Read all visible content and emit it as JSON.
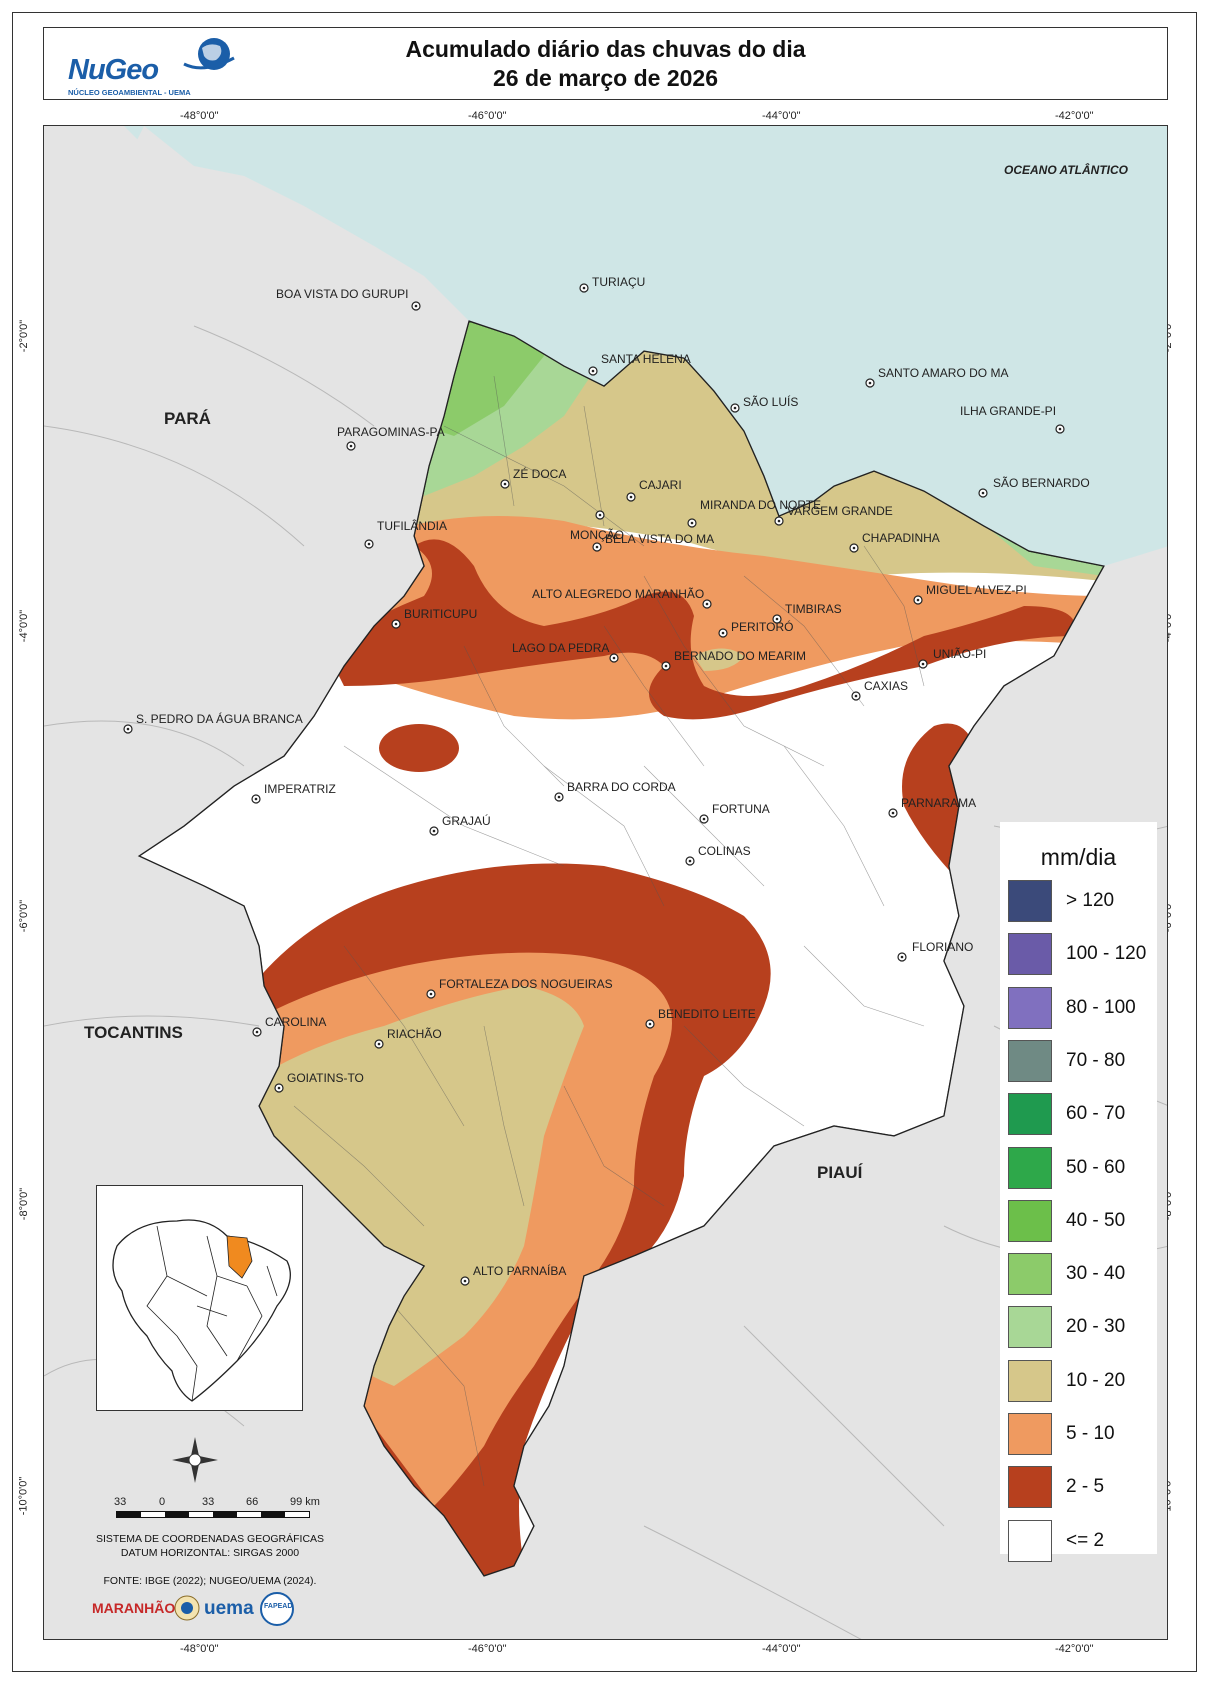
{
  "header": {
    "title_line1": "Acumulado diário das chuvas do dia",
    "title_line2": "26 de março de 2026",
    "logo_text": "NuGeo",
    "logo_subtitle": "NÚCLEO GEOAMBIENTAL - UEMA"
  },
  "coords": {
    "top": [
      "-48°0'0\"",
      "-46°0'0\"",
      "-44°0'0\"",
      "-42°0'0\""
    ],
    "bottom": [
      "-48°0'0\"",
      "-46°0'0\"",
      "-44°0'0\"",
      "-42°0'0\""
    ],
    "left": [
      "-2°0'0\"",
      "-4°0'0\"",
      "-6°0'0\"",
      "-8°0'0\"",
      "-10°0'0\""
    ],
    "right": [
      "-2°0'0\"",
      "-4°0'0\"",
      "-6°0'0\"",
      "-8°0'0\"",
      "-10°0'0\""
    ]
  },
  "regions": {
    "para": "PARÁ",
    "tocantins": "TOCANTINS",
    "piaui": "PIAUÍ",
    "ocean": "OCEANO ATLÂNTICO"
  },
  "cities": [
    {
      "name": "TURIAÇU"
    },
    {
      "name": "BOA VISTA DO GURUPI"
    },
    {
      "name": "SANTA HELENA"
    },
    {
      "name": "SÃO LUÍS"
    },
    {
      "name": "SANTO AMARO DO MA"
    },
    {
      "name": "ILHA GRANDE-PI"
    },
    {
      "name": "PARAGOMINAS-PA"
    },
    {
      "name": "ZÉ DOCA"
    },
    {
      "name": "CAJARI"
    },
    {
      "name": "SÃO BERNARDO"
    },
    {
      "name": "MONÇÃO"
    },
    {
      "name": "MIRANDA DO NORTE"
    },
    {
      "name": "VARGEM GRANDE"
    },
    {
      "name": "TUFILÂNDIA"
    },
    {
      "name": "BELA VISTA DO MA"
    },
    {
      "name": "CHAPADINHA"
    },
    {
      "name": "MIGUEL ALVEZ-PI"
    },
    {
      "name": "ALTO ALEGREDO MARANHÃO"
    },
    {
      "name": "BURITICUPU"
    },
    {
      "name": "TIMBIRAS"
    },
    {
      "name": "PERITORÓ"
    },
    {
      "name": "UNIÃO-PI"
    },
    {
      "name": "LAGO DA PEDRA"
    },
    {
      "name": "BERNADO DO MEARIM"
    },
    {
      "name": "CAXIAS"
    },
    {
      "name": "S. PEDRO DA ÁGUA BRANCA"
    },
    {
      "name": "IMPERATRIZ"
    },
    {
      "name": "BARRA DO CORDA"
    },
    {
      "name": "PARNARAMA"
    },
    {
      "name": "FORTUNA"
    },
    {
      "name": "GRAJAÚ"
    },
    {
      "name": "COLINAS"
    },
    {
      "name": "FLORIANO"
    },
    {
      "name": "FORTALEZA DOS NOGUEIRAS"
    },
    {
      "name": "BENEDITO LEITE"
    },
    {
      "name": "CAROLINA"
    },
    {
      "name": "RIACHÃO"
    },
    {
      "name": "GOIATINS-TO"
    },
    {
      "name": "ALTO PARNAÍBA"
    }
  ],
  "legend": {
    "title": "mm/dia",
    "items": [
      {
        "label": "> 120",
        "color": "#3b4a7a"
      },
      {
        "label": "100 - 120",
        "color": "#6a5ba8"
      },
      {
        "label": "80 - 100",
        "color": "#8070bf"
      },
      {
        "label": "70 - 80",
        "color": "#6f8a84"
      },
      {
        "label": "60 - 70",
        "color": "#1f9a4f"
      },
      {
        "label": "50 - 60",
        "color": "#2ea84a"
      },
      {
        "label": "40 - 50",
        "color": "#6cbf4a"
      },
      {
        "label": "30 - 40",
        "color": "#8ccb6a"
      },
      {
        "label": "20 - 30",
        "color": "#a8d796"
      },
      {
        "label": "10 - 20",
        "color": "#d6c78a"
      },
      {
        "label": "5 - 10",
        "color": "#ef9a60"
      },
      {
        "label": "2 - 5",
        "color": "#b7401e"
      },
      {
        "label": "<= 2",
        "color": "#ffffff"
      }
    ]
  },
  "scale": {
    "ticks": [
      "33",
      "0",
      "33",
      "66",
      "99 km"
    ]
  },
  "info": {
    "line1": "SISTEMA DE COORDENADAS GEOGRÁFICAS",
    "line2": "DATUM HORIZONTAL: SIRGAS 2000",
    "source": "FONTE: IBGE (2022); NUGEO/UEMA (2024)."
  },
  "sponsors": {
    "maranhao": "MARANHÃO",
    "uema": "uema",
    "fapead": "FAPEAD"
  }
}
